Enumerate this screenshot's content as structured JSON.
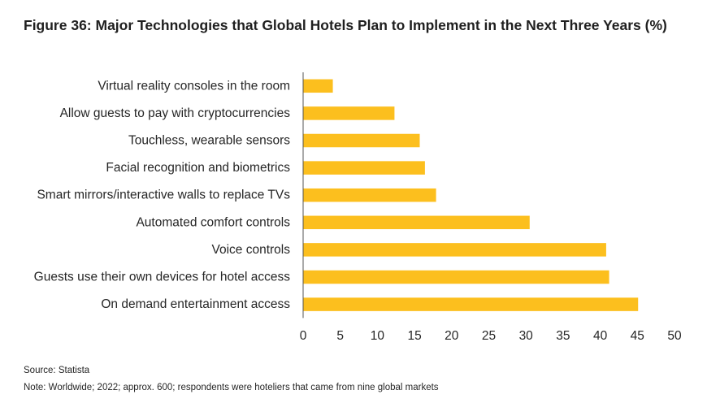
{
  "title": "Figure 36: Major Technologies that Global Hotels Plan to Implement in the Next Three Years (%)",
  "source": "Source: Statista",
  "note": "Note: Worldwide; 2022; approx. 600; respondents were hoteliers that came from nine global markets",
  "colors": {
    "bar": "#fcbf1e",
    "axis": "#555555"
  },
  "chart_data": {
    "type": "bar",
    "orientation": "horizontal",
    "title": "Figure 36: Major Technologies that Global Hotels Plan to Implement in the Next Three Years (%)",
    "categories": [
      "Virtual reality consoles in the room",
      "Allow guests to pay with cryptocurrencies",
      "Touchless, wearable sensors",
      "Facial recognition and biometrics",
      "Smart mirrors/interactive walls to replace TVs",
      "Automated comfort controls",
      "Voice controls",
      "Guests use their own devices for hotel access",
      "On demand entertainment access"
    ],
    "values": [
      4,
      12.3,
      15.7,
      16.4,
      17.9,
      30.5,
      40.8,
      41.2,
      45.1
    ],
    "xlim": [
      0,
      50
    ],
    "xticks": [
      "0",
      "5",
      "10",
      "15",
      "20",
      "25",
      "30",
      "35",
      "40",
      "45",
      "50"
    ],
    "grid": false,
    "legend": "none"
  }
}
